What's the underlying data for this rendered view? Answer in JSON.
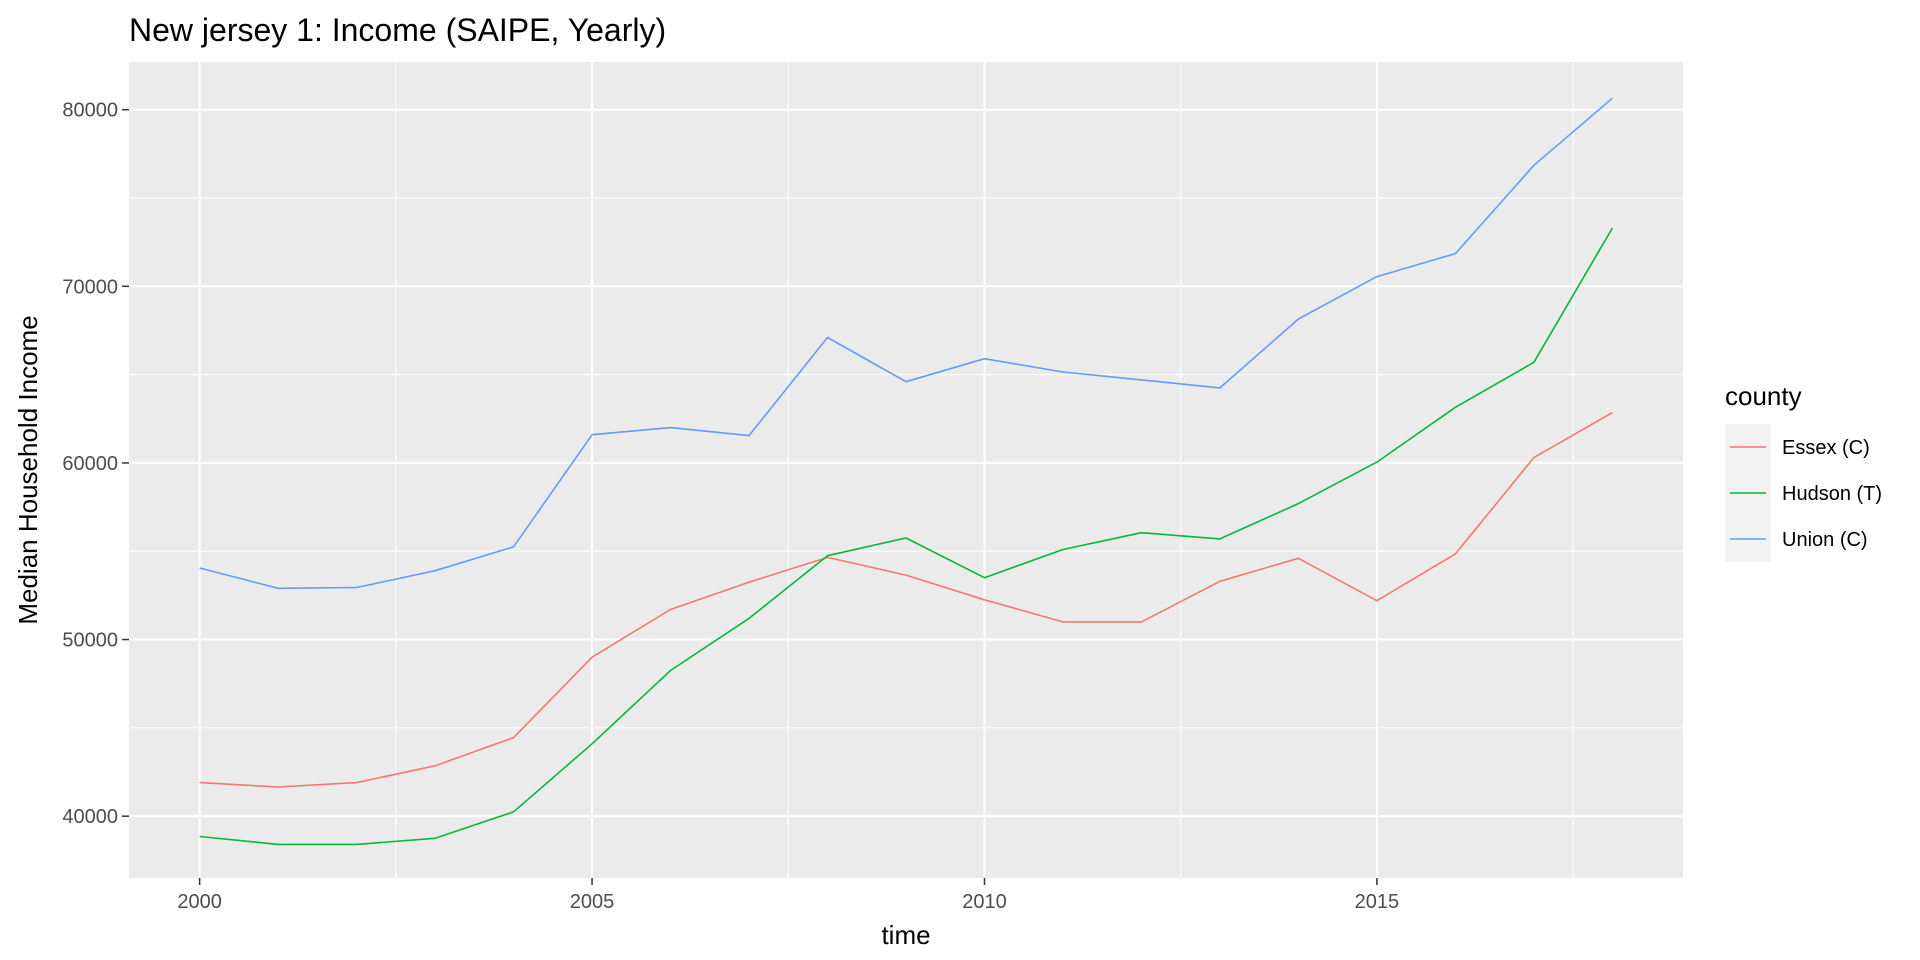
{
  "chart_data": {
    "type": "line",
    "title": "New jersey 1: Income (SAIPE, Yearly)",
    "xlabel": "time",
    "ylabel": "Median Household Income",
    "xlim": [
      1999.1,
      2018.9
    ],
    "ylim": [
      36500,
      82700
    ],
    "x_ticks": [
      2000,
      2005,
      2010,
      2015
    ],
    "y_ticks": [
      40000,
      50000,
      60000,
      70000,
      80000
    ],
    "grid": true,
    "legend_position": "right",
    "legend_title": "county",
    "x": [
      2000,
      2001,
      2002,
      2003,
      2004,
      2005,
      2006,
      2007,
      2008,
      2009,
      2010,
      2011,
      2012,
      2013,
      2014,
      2015,
      2016,
      2017,
      2018
    ],
    "series": [
      {
        "name": "Essex (C)",
        "color": "#F8766D",
        "values": [
          41900,
          41650,
          41900,
          42850,
          44450,
          49000,
          51700,
          53250,
          54650,
          53650,
          52250,
          51000,
          51000,
          53300,
          54600,
          52200,
          54850,
          60300,
          62850
        ]
      },
      {
        "name": "Hudson (T)",
        "color": "#00BA38",
        "values": [
          38850,
          38400,
          38400,
          38750,
          40250,
          44100,
          48250,
          51200,
          54750,
          55750,
          53500,
          55100,
          56050,
          55700,
          57700,
          60050,
          63150,
          65700,
          73300
        ]
      },
      {
        "name": "Union (C)",
        "color": "#619CFF",
        "values": [
          54050,
          52900,
          52950,
          53900,
          55250,
          61600,
          62000,
          61550,
          67100,
          64600,
          65900,
          65150,
          64700,
          64250,
          68150,
          70550,
          71850,
          76850,
          80650
        ]
      }
    ]
  }
}
